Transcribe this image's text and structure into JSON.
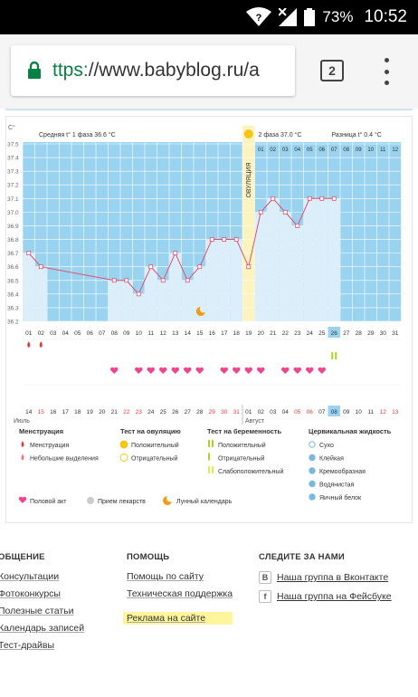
{
  "status": {
    "battery": "73%",
    "time": "10:52",
    "wifi_badge": "?"
  },
  "browser": {
    "url_scheme": "ttps:",
    "url_rest": "//www.babyblog.ru/a",
    "tab_count": "2"
  },
  "chart_data": {
    "type": "line",
    "ylabel": "C°",
    "y_ticks": [
      "37.5",
      "37.4",
      "37.3",
      "37.2",
      "37.1",
      "37.0",
      "36.9",
      "36.8",
      "36.7",
      "36.6",
      "36.5",
      "36.4",
      "36.3",
      "36.2"
    ],
    "ylim": [
      36.2,
      37.5
    ],
    "phase1_label": "Средняя t° 1 фаза 36.6 °C",
    "phase2_label": "2 фаза 37.0 °C",
    "diff_label": "Разница t° 0.4 °C",
    "ovulation_label": "ОВУЛЯЦИЯ",
    "cycle_days": [
      "01",
      "02",
      "03",
      "04",
      "05",
      "06",
      "07",
      "08",
      "09",
      "10",
      "11",
      "12",
      "13",
      "14",
      "15",
      "16",
      "17",
      "18",
      "19",
      "20",
      "21",
      "22",
      "23",
      "24",
      "25",
      "26",
      "27",
      "28",
      "29",
      "30",
      "31"
    ],
    "phase2_days": [
      "01",
      "02",
      "03",
      "04",
      "05",
      "06",
      "07",
      "08",
      "09",
      "10",
      "11",
      "12"
    ],
    "dates": [
      "14",
      "15",
      "16",
      "17",
      "18",
      "19",
      "20",
      "21",
      "22",
      "23",
      "24",
      "25",
      "26",
      "27",
      "28",
      "29",
      "30",
      "31",
      "01",
      "02",
      "03",
      "04",
      "05",
      "06",
      "07",
      "08",
      "09",
      "10",
      "11",
      "12",
      "13"
    ],
    "red_dates": [
      "15",
      "22",
      "23",
      "29",
      "30",
      "31",
      "05",
      "06",
      "12",
      "13"
    ],
    "month_left": "Июль",
    "month_right": "Август",
    "ovulation_day": 19,
    "today_day": 26,
    "temps": [
      [
        1,
        36.7
      ],
      [
        2,
        36.6
      ],
      [
        8,
        36.5
      ],
      [
        9,
        36.5
      ],
      [
        10,
        36.4
      ],
      [
        11,
        36.6
      ],
      [
        12,
        36.5
      ],
      [
        13,
        36.7
      ],
      [
        14,
        36.5
      ],
      [
        15,
        36.6
      ],
      [
        16,
        36.8
      ],
      [
        17,
        36.8
      ],
      [
        18,
        36.8
      ],
      [
        19,
        36.6
      ],
      [
        20,
        37.0
      ],
      [
        21,
        37.1
      ],
      [
        22,
        37.0
      ],
      [
        23,
        36.9
      ],
      [
        24,
        37.1
      ],
      [
        25,
        37.1
      ],
      [
        26,
        37.1
      ]
    ],
    "menstruation_days": [
      1,
      2
    ],
    "heart_days": [
      8,
      10,
      11,
      12,
      13,
      14,
      15,
      17,
      18,
      19,
      20,
      22,
      23,
      24,
      25
    ],
    "ovulation_test_days": [
      26
    ],
    "moon_day": 15
  },
  "legend": {
    "col1_title": "Менструация",
    "col1": [
      "Менструация",
      "Небольшие выделения"
    ],
    "col2_title": "Тест на овуляцию",
    "col2": [
      "Положительный",
      "Отрицательный"
    ],
    "col3_title": "Тест на беременность",
    "col3": [
      "Положительный",
      "Отрицательный",
      "Слабоположительный"
    ],
    "col4_title": "Цервикальная жидкость",
    "col4": [
      "Сухо",
      "Клейкая",
      "Кремообразная",
      "Водянистая",
      "Яичный белок"
    ],
    "bottom": [
      "Половой акт",
      "Прием лекарств",
      "Лунный календарь"
    ]
  },
  "footer": {
    "col1_title": "ОБЩЕНИЕ",
    "col1": [
      "Консультации",
      "Фотоконкурсы",
      "Полезные статьи",
      "Календарь записей",
      "Тест-драйвы"
    ],
    "col2_title": "ПОМОЩЬ",
    "col2": [
      "Помощь по сайту",
      "Техническая поддержка",
      "Реклама на сайте"
    ],
    "col3_title": "СЛЕДИТЕ ЗА НАМИ",
    "col3": [
      {
        "icon": "B",
        "label": "Наша группа в Вконтакте"
      },
      {
        "icon": "f",
        "label": "Наша группа на Фейсбуке"
      }
    ]
  },
  "colors": {
    "phase_bg": "#9ad3f0",
    "ovulation": "#fdf3bf",
    "line": "#e05070",
    "heart": "#f0448c",
    "footer_highlight": "#fff59d"
  }
}
